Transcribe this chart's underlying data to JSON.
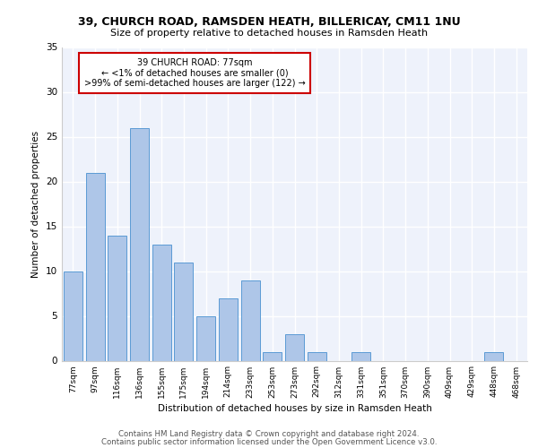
{
  "title1": "39, CHURCH ROAD, RAMSDEN HEATH, BILLERICAY, CM11 1NU",
  "title2": "Size of property relative to detached houses in Ramsden Heath",
  "xlabel": "Distribution of detached houses by size in Ramsden Heath",
  "ylabel": "Number of detached properties",
  "categories": [
    "77sqm",
    "97sqm",
    "116sqm",
    "136sqm",
    "155sqm",
    "175sqm",
    "194sqm",
    "214sqm",
    "233sqm",
    "253sqm",
    "273sqm",
    "292sqm",
    "312sqm",
    "331sqm",
    "351sqm",
    "370sqm",
    "390sqm",
    "409sqm",
    "429sqm",
    "448sqm",
    "468sqm"
  ],
  "values": [
    10,
    21,
    14,
    26,
    13,
    11,
    5,
    7,
    9,
    1,
    3,
    1,
    0,
    1,
    0,
    0,
    0,
    0,
    0,
    1,
    0
  ],
  "bar_color": "#aec6e8",
  "bar_edge_color": "#5b9bd5",
  "annotation_title": "39 CHURCH ROAD: 77sqm",
  "annotation_line1": "← <1% of detached houses are smaller (0)",
  "annotation_line2": ">99% of semi-detached houses are larger (122) →",
  "annotation_box_color": "#ffffff",
  "annotation_box_edge": "#cc0000",
  "ylim": [
    0,
    35
  ],
  "yticks": [
    0,
    5,
    10,
    15,
    20,
    25,
    30,
    35
  ],
  "background_color": "#eef2fb",
  "grid_color": "#ffffff",
  "footer1": "Contains HM Land Registry data © Crown copyright and database right 2024.",
  "footer2": "Contains public sector information licensed under the Open Government Licence v3.0."
}
